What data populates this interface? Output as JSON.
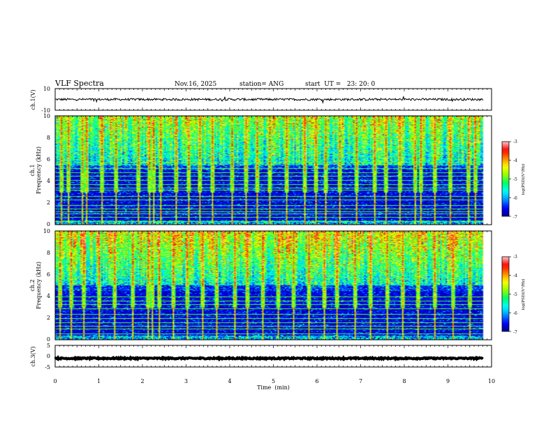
{
  "colors": {
    "frame": "#000000",
    "background": "#ffffff",
    "colormap": [
      "#000000",
      "#00008b",
      "#0000ff",
      "#0096ff",
      "#00ffff",
      "#00ff64",
      "#96ff00",
      "#ffff00",
      "#ff8000",
      "#ff0000",
      "#ffc8c8"
    ]
  },
  "chart_data": {
    "type": "heatmap",
    "title": "VLF Spectra",
    "date": "Nov.16, 2025",
    "station": "station= ANG",
    "start": "start  UT =   23: 20: 0",
    "xlabel": "Time  (min)",
    "xlim": [
      0,
      10
    ],
    "xticks": [
      "0",
      "1",
      "2",
      "3",
      "4",
      "5",
      "6",
      "7",
      "8",
      "9",
      "10"
    ],
    "panels": [
      {
        "id": "ch1_waveform",
        "type": "line",
        "ylabel": "ch.1(V)",
        "ylim": [
          -10,
          10
        ],
        "yticks": [
          "10",
          "-10"
        ],
        "baseline_value": 0.0,
        "noise_amplitude": 1.0,
        "data_end_min": 9.8
      },
      {
        "id": "ch1_spectrogram",
        "type": "heatmap",
        "ylabel_line1": "ch.1",
        "ylabel_line2": "Frequency  (kHz)",
        "ylim": [
          0,
          10
        ],
        "yticks": [
          "0",
          "2",
          "4",
          "6",
          "8",
          "10"
        ],
        "data_end_min": 9.8,
        "lowband_kHz": [
          0,
          5
        ],
        "noise_band_kHz": [
          5.5,
          10
        ],
        "spike_times_min": [
          0.12,
          0.3,
          0.62,
          0.71,
          1.05,
          1.37,
          1.9,
          2.15,
          2.24,
          2.4,
          2.75,
          3.05,
          3.3,
          3.6,
          4.05,
          4.35,
          4.6,
          4.9,
          5.3,
          5.7,
          5.95,
          6.2,
          6.5,
          6.9,
          7.3,
          7.55,
          7.9,
          8.25,
          8.35,
          8.7,
          9.05,
          9.45,
          9.6
        ],
        "lines_kHz": [
          0.3,
          0.7,
          1.0,
          1.2,
          1.5,
          1.8,
          2.3,
          2.6,
          3.2,
          3.4,
          3.7,
          4.1,
          4.5,
          4.8,
          5.2,
          5.8
        ],
        "colorbar": {
          "min": -7,
          "max": -3,
          "ticks": [
            "-3",
            "-4",
            "-5",
            "-6",
            "-7"
          ],
          "label": "log(PSD)(V²/Hz)"
        }
      },
      {
        "id": "ch2_spectrogram",
        "type": "heatmap",
        "ylabel_line1": "ch.2",
        "ylabel_line2": "Frequency  (kHz)",
        "ylim": [
          0,
          10
        ],
        "yticks": [
          "0",
          "2",
          "4",
          "6",
          "8",
          "10"
        ],
        "data_end_min": 9.8,
        "lowband_kHz": [
          0,
          4.5
        ],
        "noise_band_kHz": [
          5.0,
          10
        ],
        "spike_times_min": [
          0.1,
          0.35,
          0.65,
          1.0,
          1.35,
          1.75,
          2.1,
          2.22,
          2.38,
          2.7,
          3.0,
          3.35,
          3.7,
          4.1,
          4.4,
          4.75,
          5.1,
          5.45,
          5.8,
          6.15,
          6.45,
          6.85,
          7.2,
          7.6,
          7.95,
          8.3,
          8.7,
          9.1,
          9.5
        ],
        "lines_kHz": [
          0.6,
          1.0,
          1.3,
          1.6,
          2.0,
          2.4,
          2.9,
          3.3,
          3.6,
          4.0
        ],
        "colorbar": {
          "min": -7,
          "max": -3,
          "ticks": [
            "-3",
            "-4",
            "-5",
            "-6",
            "-7"
          ],
          "label": "log(PSD)(V²/Hz)"
        }
      },
      {
        "id": "ch3_waveform",
        "type": "line",
        "ylabel": "ch.3(V)",
        "ylim": [
          -5,
          5
        ],
        "yticks": [
          "5",
          "0",
          "-5"
        ],
        "baseline_value": -1.0,
        "noise_amplitude": 0.3,
        "data_end_min": 9.8
      }
    ]
  }
}
